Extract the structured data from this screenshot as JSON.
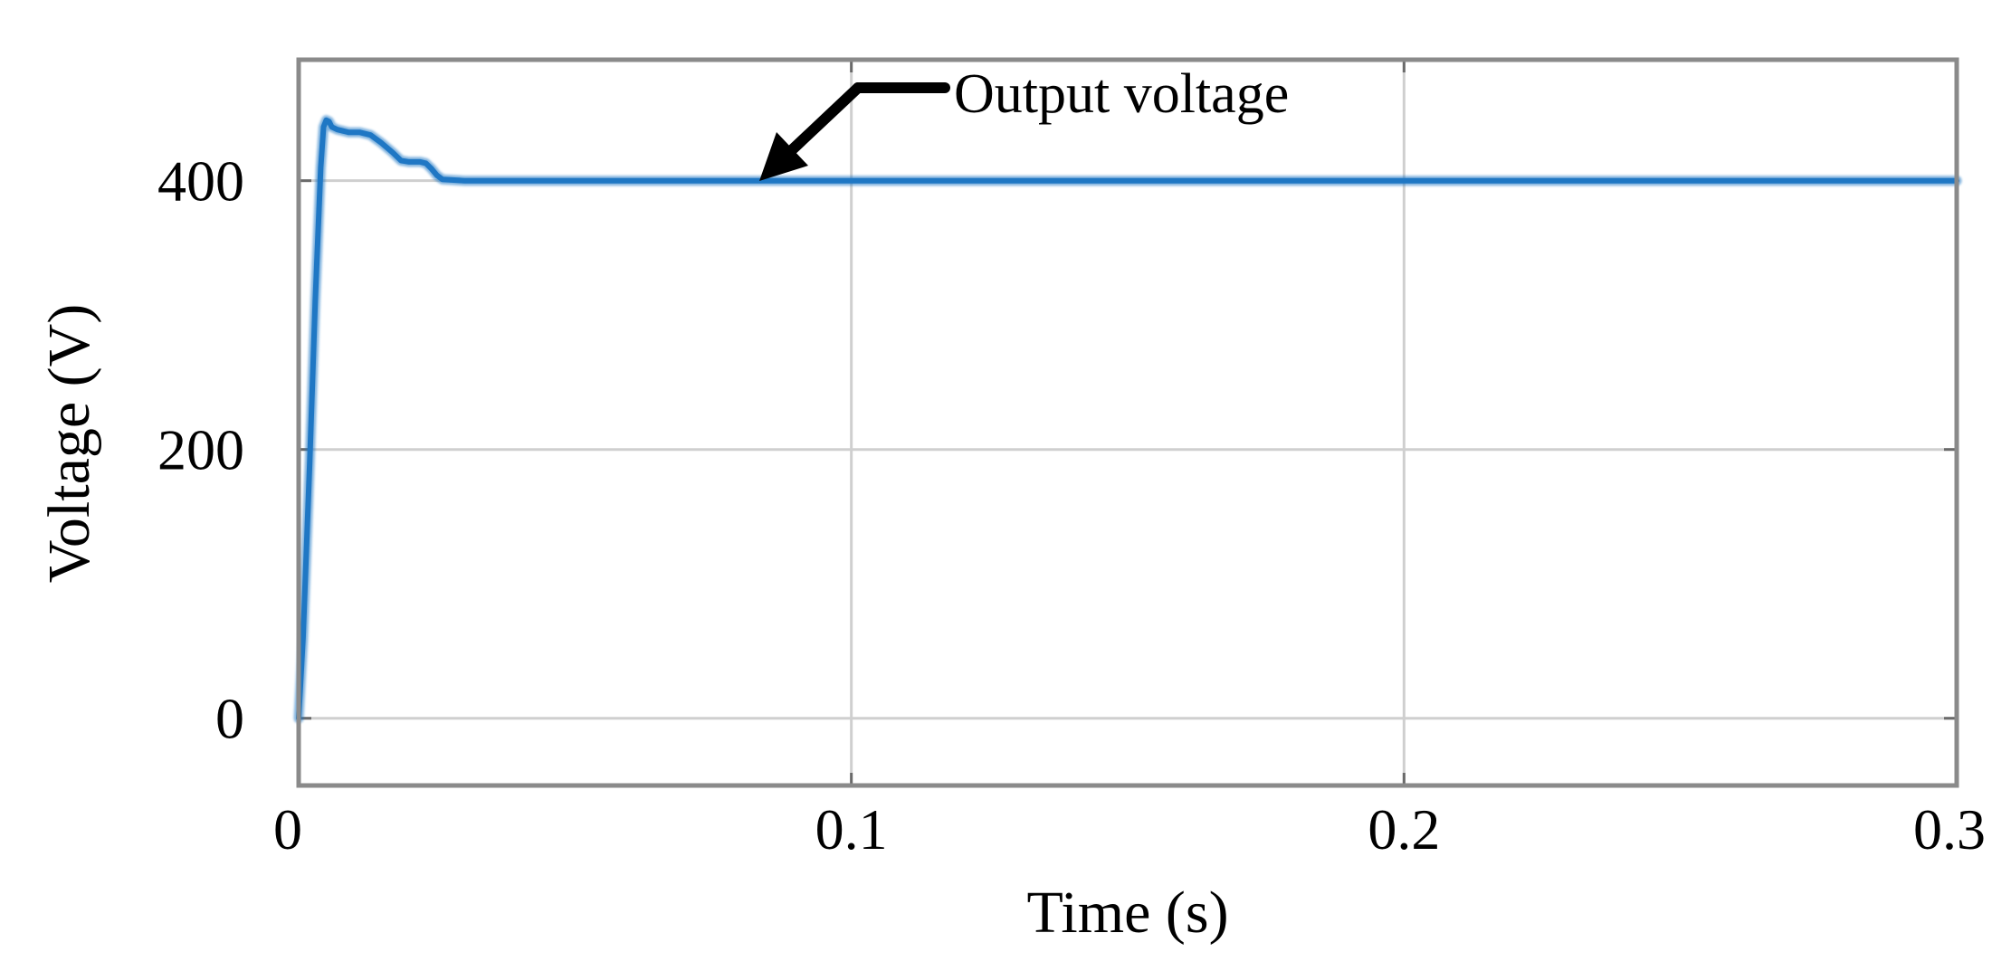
{
  "chart_data": {
    "type": "line",
    "xlabel": "Time (s)",
    "ylabel": "Voltage (V)",
    "xlim": [
      0,
      0.3
    ],
    "ylim": [
      -50,
      490
    ],
    "xticks": [
      0,
      0.1,
      0.2,
      0.3
    ],
    "xtick_labels": [
      "0",
      "0.1",
      "0.2",
      "0.3"
    ],
    "yticks": [
      0,
      200,
      400
    ],
    "ytick_labels": [
      "0",
      "200",
      "400"
    ],
    "grid": true,
    "series": [
      {
        "color": "#1f77c4",
        "x": [
          0,
          0.0008,
          0.002,
          0.003,
          0.004,
          0.0045,
          0.005,
          0.0055,
          0.006,
          0.007,
          0.008,
          0.009,
          0.011,
          0.013,
          0.015,
          0.017,
          0.0185,
          0.02,
          0.021,
          0.022,
          0.023,
          0.024,
          0.025,
          0.026,
          0.03,
          0.05,
          0.1,
          0.15,
          0.2,
          0.25,
          0.3
        ],
        "y": [
          0,
          60,
          190,
          310,
          410,
          440,
          445,
          444,
          440,
          438,
          437,
          436,
          436,
          434,
          428,
          421,
          415,
          414,
          414,
          414,
          413,
          409,
          404,
          401,
          400,
          400,
          400,
          400,
          400,
          400,
          400
        ]
      }
    ],
    "annotations": [
      {
        "text": "Output voltage",
        "arrow_to": {
          "x": 0.083,
          "y": 400
        }
      }
    ]
  }
}
